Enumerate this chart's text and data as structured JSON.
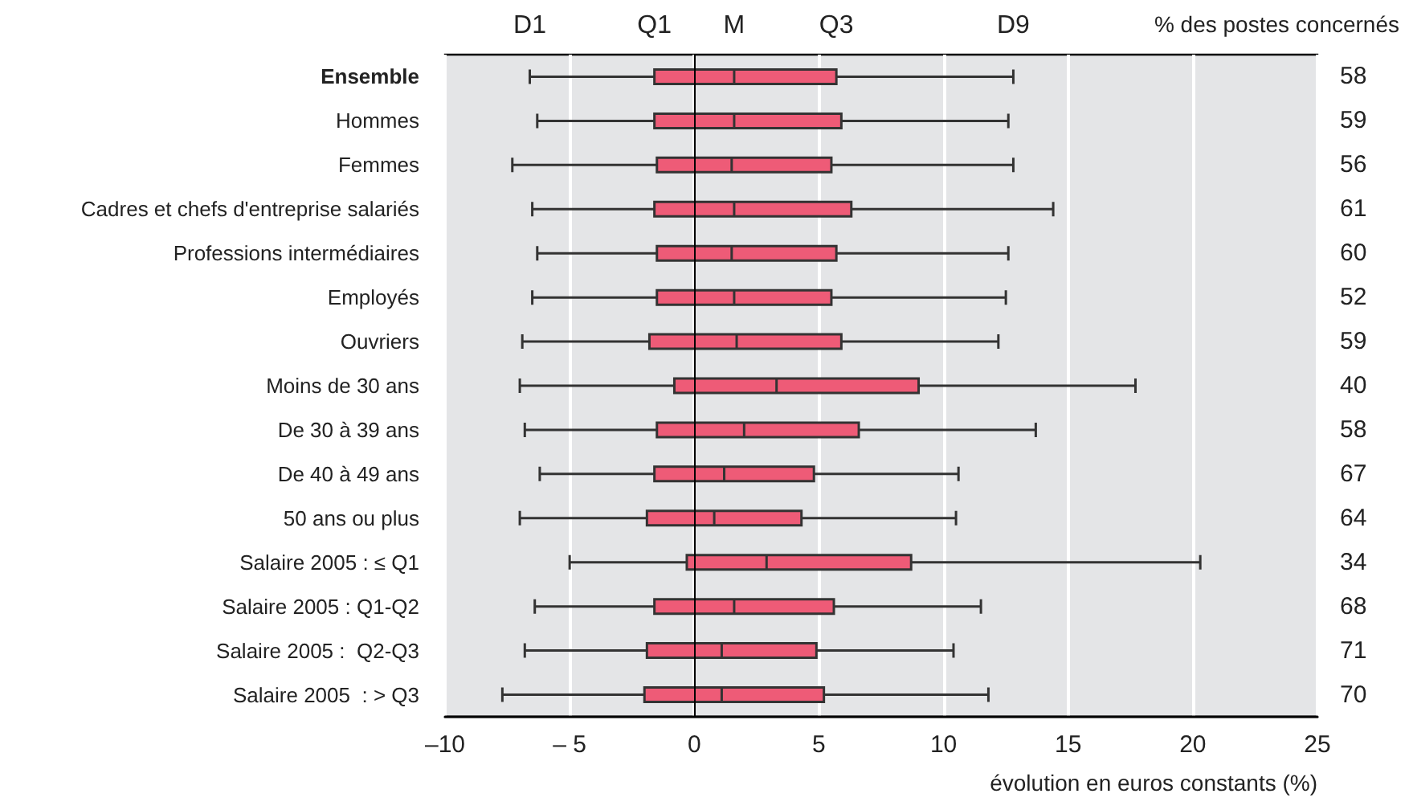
{
  "chart_data": {
    "type": "box",
    "orientation": "horizontal",
    "y2label": "% des postes concernés",
    "xlabel": "évolution en euros constants (%)",
    "categories": [
      "Ensemble",
      "Hommes",
      "Femmes",
      "Cadres et chefs d'entreprise salariés",
      "Professions intermédiaires",
      "Employés",
      "Ouvriers",
      "Moins de 30 ans",
      "De 30 à 39 ans",
      "De 40 à 49 ans",
      "50 ans ou plus",
      "Salaire 2005 : ≤ Q1",
      "Salaire 2005 : Q1-Q2",
      "Salaire 2005 :  Q2-Q3",
      "Salaire 2005  : > Q3"
    ],
    "y2_categories": [
      "58",
      "59",
      "56",
      "61",
      "60",
      "52",
      "59",
      "40",
      "58",
      "67",
      "64",
      "34",
      "68",
      "71",
      "70"
    ],
    "series": [
      {
        "color": "#ee5b77",
        "boxes": [
          {
            "low": -6.6,
            "q1": -1.6,
            "median": 1.6,
            "q3": 5.7,
            "high": 12.8
          },
          {
            "low": -6.3,
            "q1": -1.6,
            "median": 1.6,
            "q3": 5.9,
            "high": 12.6
          },
          {
            "low": -7.3,
            "q1": -1.5,
            "median": 1.5,
            "q3": 5.5,
            "high": 12.8
          },
          {
            "low": -6.5,
            "q1": -1.6,
            "median": 1.6,
            "q3": 6.3,
            "high": 14.4
          },
          {
            "low": -6.3,
            "q1": -1.5,
            "median": 1.5,
            "q3": 5.7,
            "high": 12.6
          },
          {
            "low": -6.5,
            "q1": -1.5,
            "median": 1.6,
            "q3": 5.5,
            "high": 12.5
          },
          {
            "low": -6.9,
            "q1": -1.8,
            "median": 1.7,
            "q3": 5.9,
            "high": 12.2
          },
          {
            "low": -7.0,
            "q1": -0.8,
            "median": 3.3,
            "q3": 9.0,
            "high": 17.7
          },
          {
            "low": -6.8,
            "q1": -1.5,
            "median": 2.0,
            "q3": 6.6,
            "high": 13.7
          },
          {
            "low": -6.2,
            "q1": -1.6,
            "median": 1.2,
            "q3": 4.8,
            "high": 10.6
          },
          {
            "low": -7.0,
            "q1": -1.9,
            "median": 0.8,
            "q3": 4.3,
            "high": 10.5
          },
          {
            "low": -5.0,
            "q1": -0.3,
            "median": 2.9,
            "q3": 8.7,
            "high": 20.3
          },
          {
            "low": -6.4,
            "q1": -1.6,
            "median": 1.6,
            "q3": 5.6,
            "high": 11.5
          },
          {
            "low": -6.8,
            "q1": -1.9,
            "median": 1.1,
            "q3": 4.9,
            "high": 10.4
          },
          {
            "low": -7.7,
            "q1": -2.0,
            "median": 1.1,
            "q3": 5.2,
            "high": 11.8
          }
        ]
      }
    ],
    "annotations": [
      "D1",
      "Q1",
      "M",
      "Q3",
      "D9"
    ],
    "xlim": [
      -10,
      25
    ],
    "xticks": [
      {
        "value": -10,
        "label": "–10"
      },
      {
        "value": -5,
        "label": "– 5"
      },
      0,
      5,
      10,
      15,
      20,
      25
    ],
    "grid": "x",
    "ref_lines": [
      {
        "axis": "x",
        "value": 0,
        "color": "#000000"
      }
    ]
  }
}
